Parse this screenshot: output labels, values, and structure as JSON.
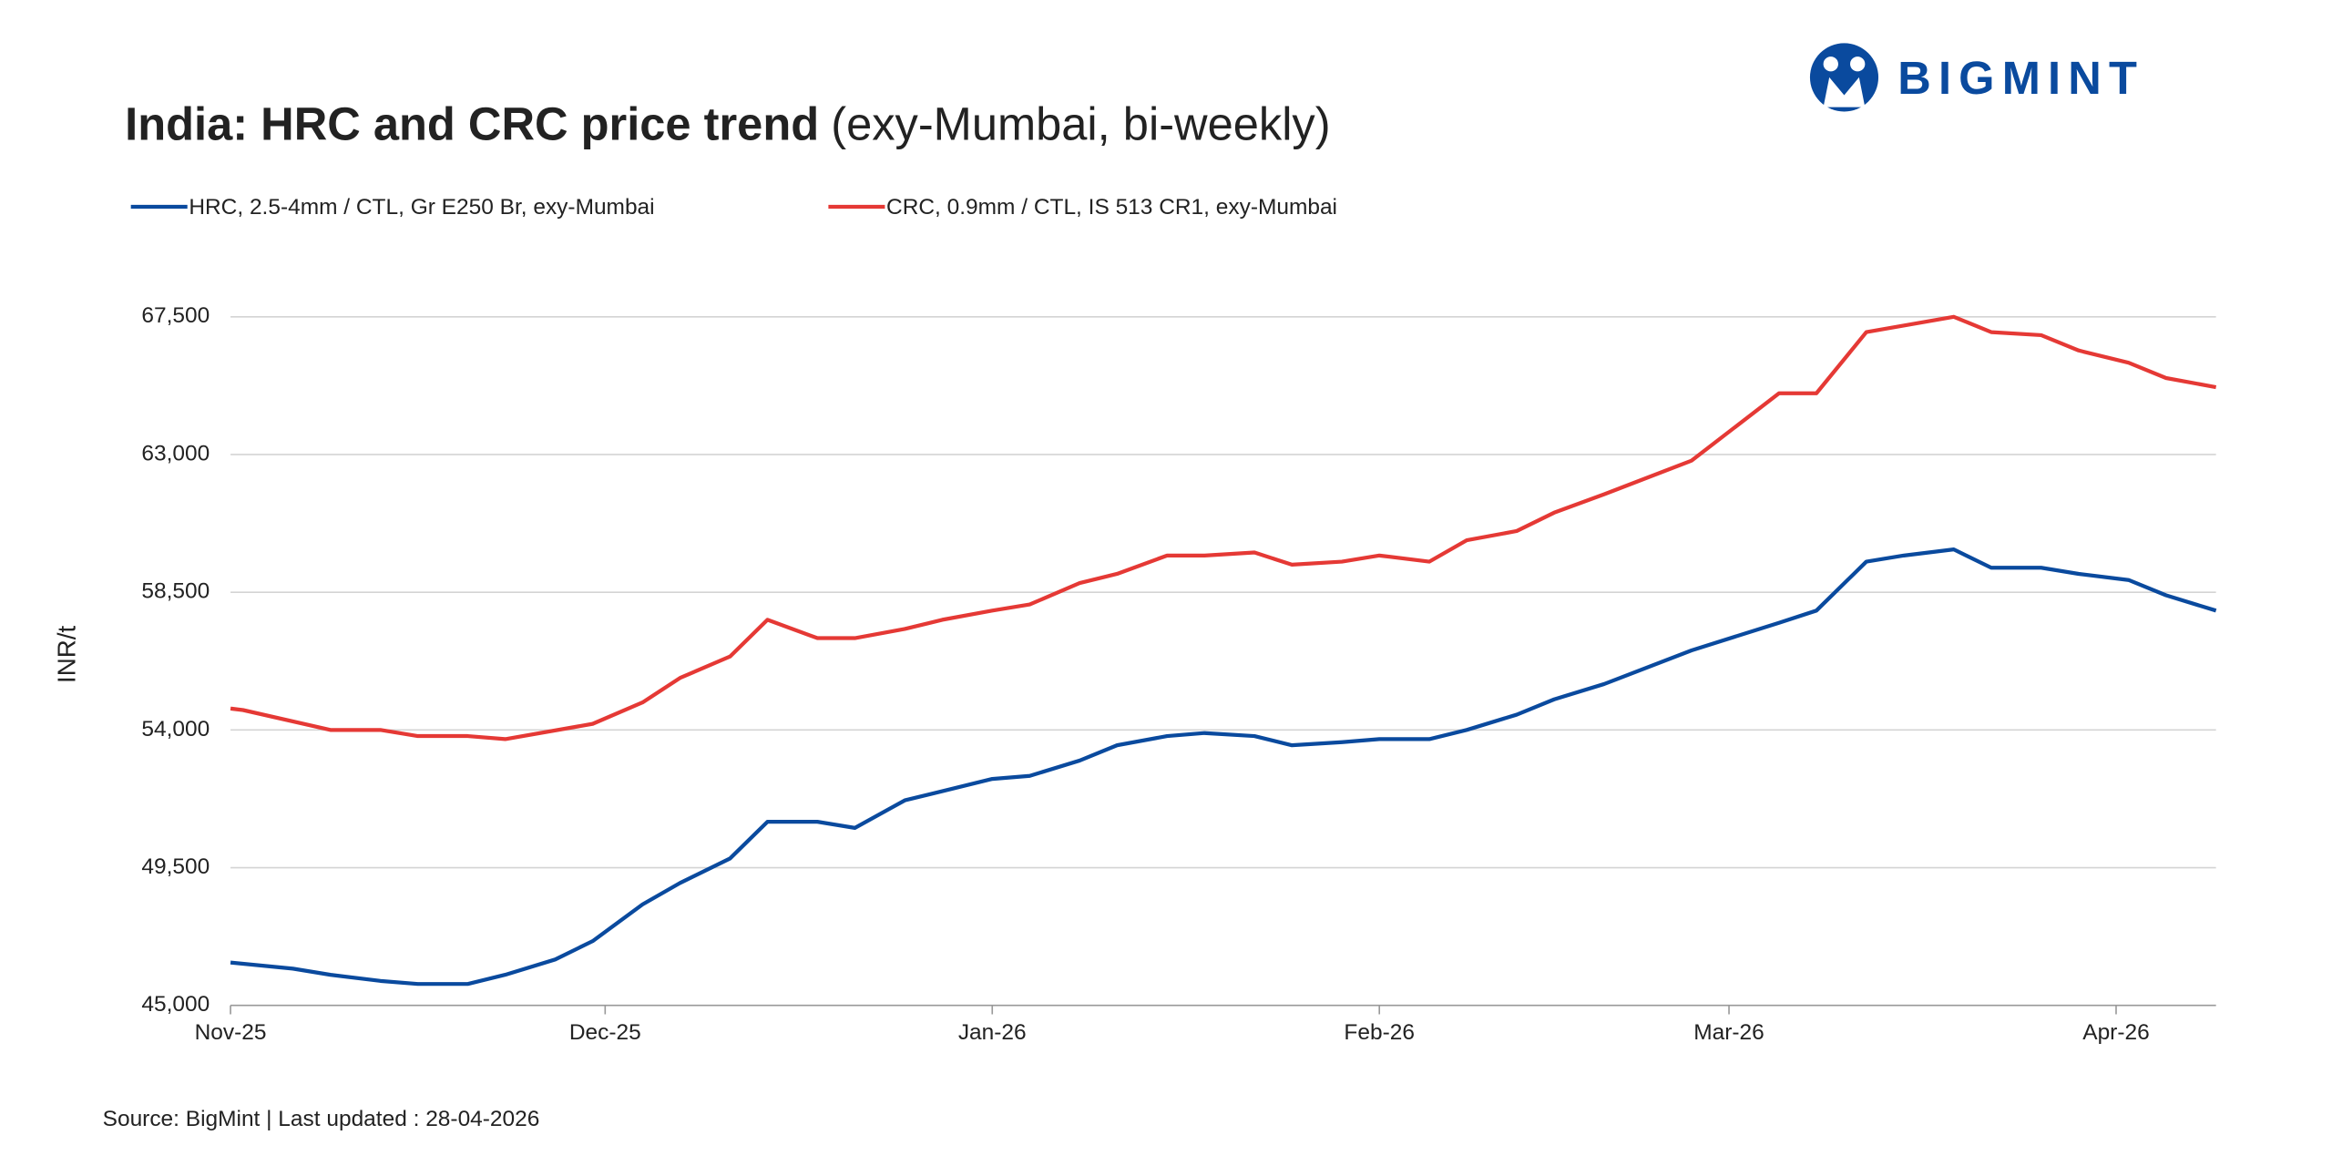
{
  "logo": "BIGMINT",
  "chart_data": {
    "type": "line",
    "title": "India: HRC and CRC price trend",
    "subtitle": "(exy-Mumbai, bi-weekly)",
    "y_label": "INR/t",
    "source": "Source: BigMint | Last updated : 28-04-2026",
    "xlim": [
      0,
      159
    ],
    "xticks": [
      {
        "value": 0,
        "label": "Nov-25"
      },
      {
        "value": 30,
        "label": "Dec-25"
      },
      {
        "value": 61,
        "label": "Jan-26"
      },
      {
        "value": 92,
        "label": "Feb-26"
      },
      {
        "value": 120,
        "label": "Mar-26"
      },
      {
        "value": 151,
        "label": "Apr-26"
      }
    ],
    "ylim": [
      45000,
      67500
    ],
    "yticks": [
      {
        "value": 45000,
        "label": "45,000"
      },
      {
        "value": 49500,
        "label": "49,500"
      },
      {
        "value": 54000,
        "label": "54,000"
      },
      {
        "value": 58500,
        "label": "58,500"
      },
      {
        "value": 63000,
        "label": "63,000"
      },
      {
        "value": 67500,
        "label": "67,500"
      }
    ],
    "grid": true,
    "legend": "top-left",
    "series": [
      {
        "name": "HRC, 2.5-4mm / CTL, Gr E250 Br, exy-Mumbai",
        "color": "#0a4a9e",
        "x": [
          0,
          5,
          8,
          12,
          15,
          19,
          22,
          26,
          29,
          33,
          36,
          40,
          43,
          47,
          50,
          54,
          57,
          61,
          64,
          68,
          71,
          75,
          78,
          82,
          85,
          89,
          92,
          96,
          99,
          103,
          106,
          110,
          117,
          124,
          127,
          131,
          134,
          138,
          141,
          145,
          148,
          152,
          155,
          159
        ],
        "values": [
          46400,
          46200,
          46000,
          45800,
          45700,
          45700,
          46000,
          46500,
          47100,
          48300,
          49000,
          49800,
          51000,
          51000,
          50800,
          51700,
          52000,
          52400,
          52500,
          53000,
          53500,
          53800,
          53900,
          53800,
          53500,
          53600,
          53700,
          53700,
          54000,
          54500,
          55000,
          55500,
          56600,
          57500,
          57900,
          59500,
          59700,
          59900,
          59300,
          59300,
          59100,
          58900,
          58400,
          57900
        ]
      },
      {
        "name": "CRC, 0.9mm / CTL, IS 513 CR1, exy-Mumbai",
        "color": "#e53935",
        "x": [
          0,
          1,
          8,
          12,
          15,
          19,
          22,
          29,
          33,
          36,
          40,
          43,
          47,
          50,
          54,
          57,
          61,
          64,
          68,
          71,
          75,
          78,
          82,
          85,
          89,
          92,
          96,
          99,
          103,
          106,
          110,
          117,
          124,
          127,
          131,
          138,
          141,
          145,
          148,
          152,
          155,
          159
        ],
        "values": [
          54700,
          54650,
          54000,
          54000,
          53800,
          53800,
          53700,
          54200,
          54900,
          55700,
          56400,
          57600,
          57000,
          57000,
          57300,
          57600,
          57900,
          58100,
          58800,
          59100,
          59700,
          59700,
          59800,
          59400,
          59500,
          59700,
          59500,
          60200,
          60500,
          61100,
          61700,
          62800,
          65000,
          65000,
          67000,
          67500,
          67000,
          66900,
          66400,
          66000,
          65500,
          65200
        ]
      }
    ]
  }
}
